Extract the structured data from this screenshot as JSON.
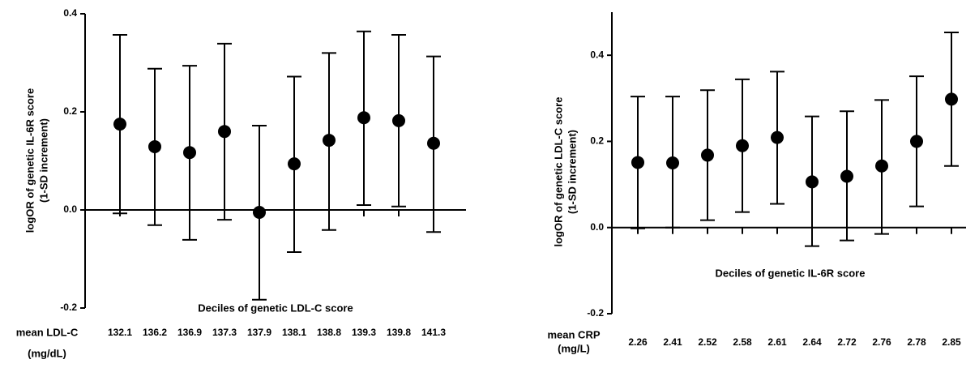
{
  "chart_data": [
    {
      "type": "errorbar",
      "ylabel": [
        "logOR of genetic IL-6R score",
        "(1-SD increment)"
      ],
      "xlabel": "Deciles of genetic LDL-C score",
      "category_title": [
        "mean LDL-C",
        "(mg/dL)"
      ],
      "categories": [
        "132.1",
        "136.2",
        "136.9",
        "137.3",
        "137.9",
        "138.1",
        "138.8",
        "139.3",
        "139.8",
        "141.3"
      ],
      "values": [
        0.175,
        0.129,
        0.117,
        0.16,
        -0.005,
        0.094,
        0.142,
        0.188,
        0.182,
        0.136
      ],
      "ci_lower": [
        -0.007,
        -0.031,
        -0.061,
        -0.02,
        -0.183,
        -0.086,
        -0.041,
        0.01,
        0.007,
        -0.045
      ],
      "ci_upper": [
        0.357,
        0.288,
        0.294,
        0.339,
        0.172,
        0.272,
        0.32,
        0.364,
        0.357,
        0.313
      ],
      "color": "#000000",
      "ylim": [
        -0.2,
        0.4
      ],
      "yticks": [
        {
          "value": -0.2,
          "label": "-0.2"
        },
        {
          "value": 0,
          "label": "0.0"
        },
        0.2,
        0.4
      ]
    },
    {
      "type": "errorbar",
      "ylabel": [
        "logOR of genetic LDL-C score",
        "(1-SD increment)"
      ],
      "xlabel": "Deciles of genetic IL-6R score",
      "category_title": [
        "mean CRP",
        "(mg/L)"
      ],
      "categories": [
        "2.26",
        "2.41",
        "2.52",
        "2.58",
        "2.61",
        "2.64",
        "2.72",
        "2.76",
        "2.78",
        "2.85"
      ],
      "values": [
        0.151,
        0.15,
        0.168,
        0.19,
        0.209,
        0.106,
        0.119,
        0.143,
        0.2,
        0.298
      ],
      "ci_lower": [
        -0.002,
        0.0,
        0.017,
        0.036,
        0.055,
        -0.043,
        -0.03,
        -0.015,
        0.049,
        0.143
      ],
      "ci_upper": [
        0.304,
        0.304,
        0.319,
        0.344,
        0.362,
        0.258,
        0.27,
        0.296,
        0.351,
        0.453
      ],
      "color": "#000000",
      "ylim": [
        -0.2,
        0.5
      ],
      "yticks": [
        {
          "value": -0.2,
          "label": "-0.2"
        },
        {
          "value": 0,
          "label": "0.0"
        },
        0.2,
        0.4
      ]
    }
  ]
}
